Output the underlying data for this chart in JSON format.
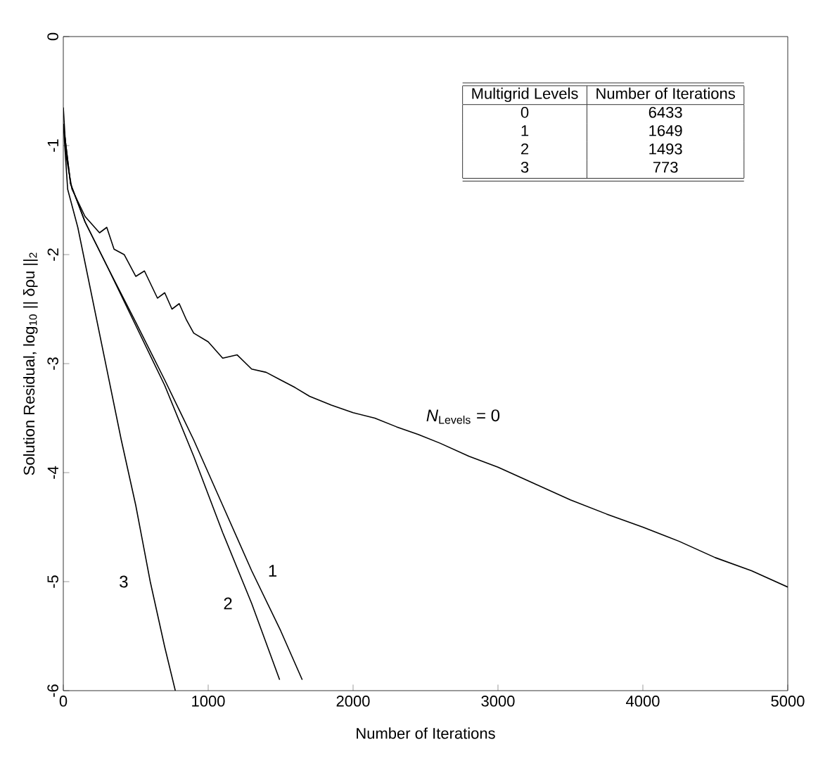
{
  "chart_data": {
    "type": "line",
    "xlabel": "Number of Iterations",
    "ylabel": "Solution Residual, log$_{10}$ || δρu ||$_{2}$",
    "xlim": [
      0,
      5000
    ],
    "ylim": [
      -6,
      0
    ],
    "xticks": [
      0,
      1000,
      2000,
      3000,
      4000,
      5000
    ],
    "yticks": [
      -6,
      -5,
      -4,
      -3,
      -2,
      -1,
      0
    ],
    "grid": false,
    "legend": false,
    "marker": "none",
    "line_style": "solid",
    "series": [
      {
        "name": "*N*$_{Levels}$ = 0",
        "color": "#000000",
        "x": [
          0,
          20,
          60,
          150,
          250,
          300,
          350,
          420,
          500,
          560,
          650,
          700,
          750,
          800,
          850,
          900,
          1000,
          1100,
          1200,
          1300,
          1400,
          1500,
          1600,
          1700,
          1850,
          2000,
          2150,
          2300,
          2450,
          2600,
          2800,
          3000,
          3250,
          3500,
          3750,
          4000,
          4250,
          4500,
          4750,
          5000
        ],
        "values": [
          -0.65,
          -1.1,
          -1.4,
          -1.65,
          -1.8,
          -1.75,
          -1.95,
          -2.0,
          -2.2,
          -2.15,
          -2.4,
          -2.35,
          -2.5,
          -2.45,
          -2.6,
          -2.72,
          -2.8,
          -2.95,
          -2.92,
          -3.05,
          -3.08,
          -3.15,
          -3.22,
          -3.3,
          -3.38,
          -3.45,
          -3.5,
          -3.58,
          -3.65,
          -3.73,
          -3.85,
          -3.95,
          -4.1,
          -4.25,
          -4.38,
          -4.5,
          -4.63,
          -4.78,
          -4.9,
          -5.05
        ]
      },
      {
        "name": "1",
        "color": "#000000",
        "x": [
          0,
          50,
          150,
          300,
          500,
          700,
          900,
          1100,
          1300,
          1500,
          1649
        ],
        "values": [
          -0.8,
          -1.35,
          -1.7,
          -2.1,
          -2.62,
          -3.15,
          -3.7,
          -4.3,
          -4.9,
          -5.45,
          -5.9
        ]
      },
      {
        "name": "2",
        "color": "#000000",
        "x": [
          0,
          50,
          150,
          300,
          500,
          700,
          900,
          1100,
          1300,
          1493
        ],
        "values": [
          -0.8,
          -1.35,
          -1.7,
          -2.1,
          -2.65,
          -3.2,
          -3.85,
          -4.55,
          -5.2,
          -5.9
        ]
      },
      {
        "name": "3",
        "color": "#000000",
        "x": [
          0,
          30,
          100,
          200,
          300,
          400,
          500,
          600,
          700,
          773
        ],
        "values": [
          -0.8,
          -1.4,
          -1.75,
          -2.4,
          -3.05,
          -3.7,
          -4.3,
          -5.0,
          -5.6,
          -6.0
        ]
      }
    ],
    "annotations": [
      "Multigrid Levels",
      "Number of Iterations",
      "0",
      "6433",
      "1",
      "1649",
      "2",
      "1493",
      "3",
      "773"
    ]
  }
}
